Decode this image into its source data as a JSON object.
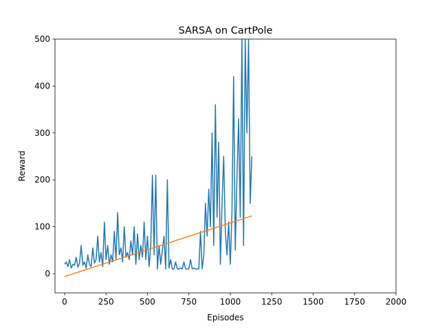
{
  "chart_data": {
    "type": "line",
    "title": "SARSA on CartPole",
    "x_label": "Episodes",
    "y_label": "Reward",
    "xlim": [
      -58,
      2000
    ],
    "ylim": [
      -41,
      500
    ],
    "xticks": [
      0,
      250,
      500,
      750,
      1000,
      1250,
      1500,
      1750,
      2000
    ],
    "yticks": [
      0,
      100,
      200,
      300,
      400,
      500
    ],
    "series": [
      {
        "color": "#1f77b4",
        "x": [
          0,
          10,
          20,
          30,
          40,
          50,
          60,
          70,
          80,
          90,
          100,
          110,
          120,
          130,
          140,
          150,
          160,
          170,
          180,
          190,
          200,
          210,
          220,
          230,
          240,
          250,
          260,
          270,
          280,
          290,
          300,
          310,
          320,
          330,
          340,
          350,
          360,
          370,
          380,
          390,
          400,
          410,
          420,
          430,
          440,
          450,
          460,
          470,
          480,
          490,
          500,
          510,
          520,
          530,
          540,
          550,
          560,
          570,
          580,
          590,
          600,
          610,
          620,
          630,
          640,
          650,
          660,
          670,
          680,
          690,
          700,
          710,
          720,
          730,
          740,
          750,
          760,
          770,
          780,
          790,
          800,
          810,
          820,
          830,
          840,
          850,
          860,
          870,
          880,
          890,
          900,
          910,
          920,
          930,
          940,
          950,
          960,
          970,
          980,
          990,
          1000,
          1010,
          1020,
          1030,
          1040,
          1050,
          1060,
          1070,
          1080,
          1090,
          1100,
          1110,
          1120,
          1130
        ],
        "values": [
          20,
          25,
          15,
          30,
          12,
          20,
          18,
          35,
          14,
          22,
          60,
          18,
          25,
          12,
          40,
          20,
          15,
          55,
          22,
          30,
          80,
          25,
          45,
          15,
          110,
          30,
          60,
          20,
          40,
          25,
          90,
          30,
          130,
          40,
          55,
          25,
          100,
          35,
          45,
          30,
          70,
          40,
          100,
          20,
          85,
          30,
          60,
          35,
          110,
          30,
          80,
          15,
          60,
          210,
          40,
          210,
          10,
          60,
          20,
          50,
          80,
          10,
          200,
          12,
          30,
          10,
          10,
          25,
          10,
          10,
          12,
          10,
          25,
          10,
          10,
          10,
          30,
          10,
          12,
          10,
          10,
          10,
          90,
          10,
          40,
          150,
          80,
          180,
          100,
          300,
          60,
          360,
          120,
          280,
          20,
          150,
          250,
          90,
          40,
          110,
          20,
          130,
          420,
          50,
          200,
          330,
          120,
          500,
          60,
          500,
          300,
          500,
          150,
          250
        ]
      },
      {
        "color": "#ff7f0e",
        "x": [
          0,
          1130
        ],
        "values": [
          -6,
          123
        ]
      }
    ]
  }
}
